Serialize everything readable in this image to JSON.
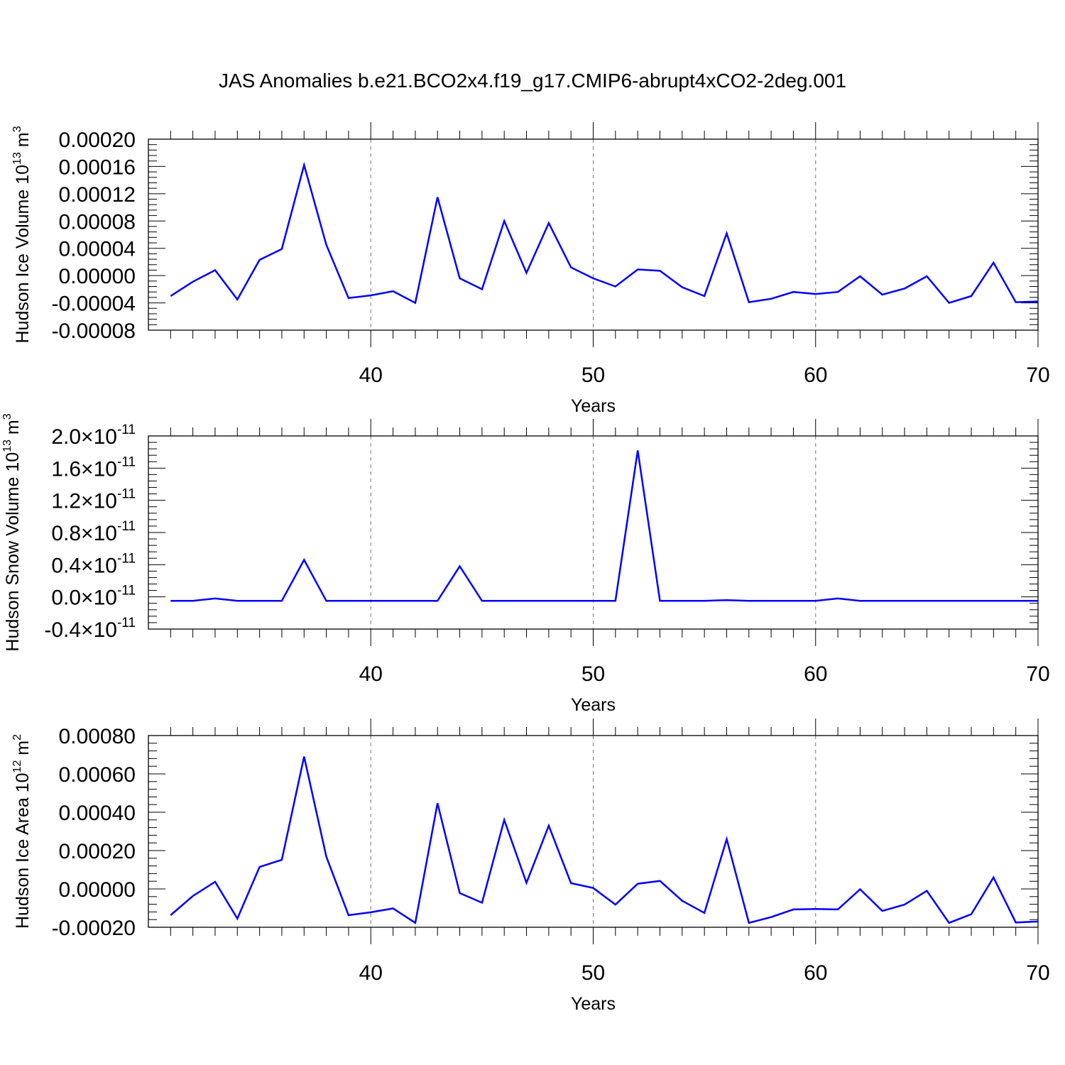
{
  "title": "JAS Anomalies b.e21.BCO2x4.f19_g17.CMIP6-abrupt4xCO2-2deg.001",
  "series_color": "#0000ff",
  "chart_data": [
    {
      "type": "line",
      "xlabel": "Years",
      "ylabel_main": "Hudson Ice Volume 10",
      "ylabel_exp": "13",
      "ylabel_tail": " m",
      "ylabel_unit_exp": "3",
      "xlim": [
        31,
        70
      ],
      "ylim": [
        -8e-05,
        0.0002
      ],
      "x_ticks": [
        "40",
        "50",
        "60",
        "70"
      ],
      "y_ticks": [
        "0.00020",
        "0.00016",
        "0.00012",
        "0.00008",
        "0.00004",
        "0.00000",
        "-0.00004",
        "-0.00008"
      ],
      "y_tick_values": [
        0.0002,
        0.00016,
        0.00012,
        8e-05,
        4e-05,
        0.0,
        -4e-05,
        -8e-05
      ],
      "grid": "dashed vertical at major x ticks",
      "x": [
        31,
        32,
        33,
        34,
        35,
        36,
        37,
        38,
        39,
        40,
        41,
        42,
        43,
        44,
        45,
        46,
        47,
        48,
        49,
        50,
        51,
        52,
        53,
        54,
        55,
        56,
        57,
        58,
        59,
        60,
        61,
        62,
        63,
        64,
        65,
        66,
        67,
        68,
        69,
        70
      ],
      "y": [
        -3e-05,
        -9e-06,
        8e-06,
        -3.5e-05,
        2.3e-05,
        3.9e-05,
        0.000162,
        4.5e-05,
        -3.3e-05,
        -2.9e-05,
        -2.3e-05,
        -4e-05,
        0.000115,
        -4e-06,
        -2e-05,
        8e-05,
        4e-06,
        7.7e-05,
        1.2e-05,
        -4e-06,
        -1.6e-05,
        9e-06,
        7e-06,
        -1.7e-05,
        -3e-05,
        6.2e-05,
        -3.9e-05,
        -3.4e-05,
        -2.4e-05,
        -2.7e-05,
        -2.4e-05,
        -1e-06,
        -2.8e-05,
        -1.9e-05,
        -1e-06,
        -4e-05,
        -3e-05,
        1.9e-05,
        -3.9e-05,
        -3.8e-05
      ]
    },
    {
      "type": "line",
      "xlabel": "Years",
      "ylabel_main": "Hudson Snow Volume 10",
      "ylabel_exp": "13",
      "ylabel_tail": " m",
      "ylabel_unit_exp": "3",
      "xlim": [
        31,
        70
      ],
      "ylim": [
        -0.4,
        2.0
      ],
      "x_ticks": [
        "40",
        "50",
        "60",
        "70"
      ],
      "y_ticks_mantissa": [
        "2.0",
        "1.6",
        "1.2",
        "0.8",
        "0.4",
        "0.0",
        "-0.4"
      ],
      "y_tick_times": "×10",
      "y_tick_exp": "-11",
      "y_tick_values": [
        2.0,
        1.6,
        1.2,
        0.8,
        0.4,
        0.0,
        -0.4
      ],
      "grid": "dashed vertical at major x ticks",
      "x": [
        31,
        32,
        33,
        34,
        35,
        36,
        37,
        38,
        39,
        40,
        41,
        42,
        43,
        44,
        45,
        46,
        47,
        48,
        49,
        50,
        51,
        52,
        53,
        54,
        55,
        56,
        57,
        58,
        59,
        60,
        61,
        62,
        63,
        64,
        65,
        66,
        67,
        68,
        69,
        70
      ],
      "y": [
        -0.05,
        -0.05,
        -0.02,
        -0.05,
        -0.05,
        -0.05,
        0.46,
        -0.05,
        -0.05,
        -0.05,
        -0.05,
        -0.05,
        -0.05,
        0.38,
        -0.05,
        -0.05,
        -0.05,
        -0.05,
        -0.05,
        -0.05,
        -0.05,
        1.82,
        -0.05,
        -0.05,
        -0.05,
        -0.04,
        -0.05,
        -0.05,
        -0.05,
        -0.05,
        -0.02,
        -0.05,
        -0.05,
        -0.05,
        -0.05,
        -0.05,
        -0.05,
        -0.05,
        -0.05,
        -0.05
      ]
    },
    {
      "type": "line",
      "xlabel": "Years",
      "ylabel_main": "Hudson Ice Area 10",
      "ylabel_exp": "12",
      "ylabel_tail": " m",
      "ylabel_unit_exp": "2",
      "xlim": [
        31,
        70
      ],
      "ylim": [
        -0.0002,
        0.0008
      ],
      "x_ticks": [
        "40",
        "50",
        "60",
        "70"
      ],
      "y_ticks": [
        "0.00080",
        "0.00060",
        "0.00040",
        "0.00020",
        "0.00000",
        "-0.00020"
      ],
      "y_tick_values": [
        0.0008,
        0.0006,
        0.0004,
        0.0002,
        0.0,
        -0.0002
      ],
      "grid": "dashed vertical at major x ticks",
      "x": [
        31,
        32,
        33,
        34,
        35,
        36,
        37,
        38,
        39,
        40,
        41,
        42,
        43,
        44,
        45,
        46,
        47,
        48,
        49,
        50,
        51,
        52,
        53,
        54,
        55,
        56,
        57,
        58,
        59,
        60,
        61,
        62,
        63,
        64,
        65,
        66,
        67,
        68,
        69,
        70
      ],
      "y": [
        -0.000137,
        -3.7e-05,
        3.7e-05,
        -0.000155,
        0.000115,
        0.000152,
        0.00069,
        0.000168,
        -0.000137,
        -0.000122,
        -0.000102,
        -0.000177,
        0.000447,
        -2.2e-05,
        -7.2e-05,
        0.00036,
        3.2e-05,
        0.00033,
        3e-05,
        5e-06,
        -8.2e-05,
        2.7e-05,
        4.2e-05,
        -6.2e-05,
        -0.000125,
        0.00026,
        -0.000177,
        -0.000147,
        -0.000107,
        -0.000105,
        -0.000107,
        -2e-06,
        -0.000115,
        -8.2e-05,
        -1e-05,
        -0.000177,
        -0.000132,
        6e-05,
        -0.000175,
        -0.00017
      ]
    }
  ]
}
